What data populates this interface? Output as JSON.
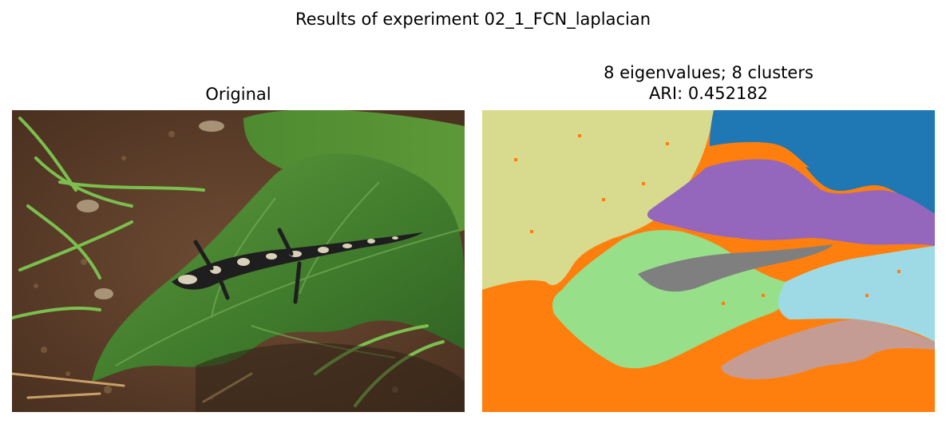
{
  "figure": {
    "suptitle": "Results of experiment 02_1_FCN_laplacian"
  },
  "panels": {
    "original": {
      "title": "Original",
      "image": "photo of a spotted salamander on a green leaf"
    },
    "segmentation": {
      "title_line1": "8 eigenvalues; 8 clusters",
      "title_line2": "ARI: 0.452182",
      "image": "cluster label map",
      "cluster_colors": [
        "#d8da8e",
        "#1f77b4",
        "#9467bd",
        "#ff7f0e",
        "#98df8a",
        "#7f7f7f",
        "#9edae5",
        "#c49c94"
      ]
    }
  }
}
